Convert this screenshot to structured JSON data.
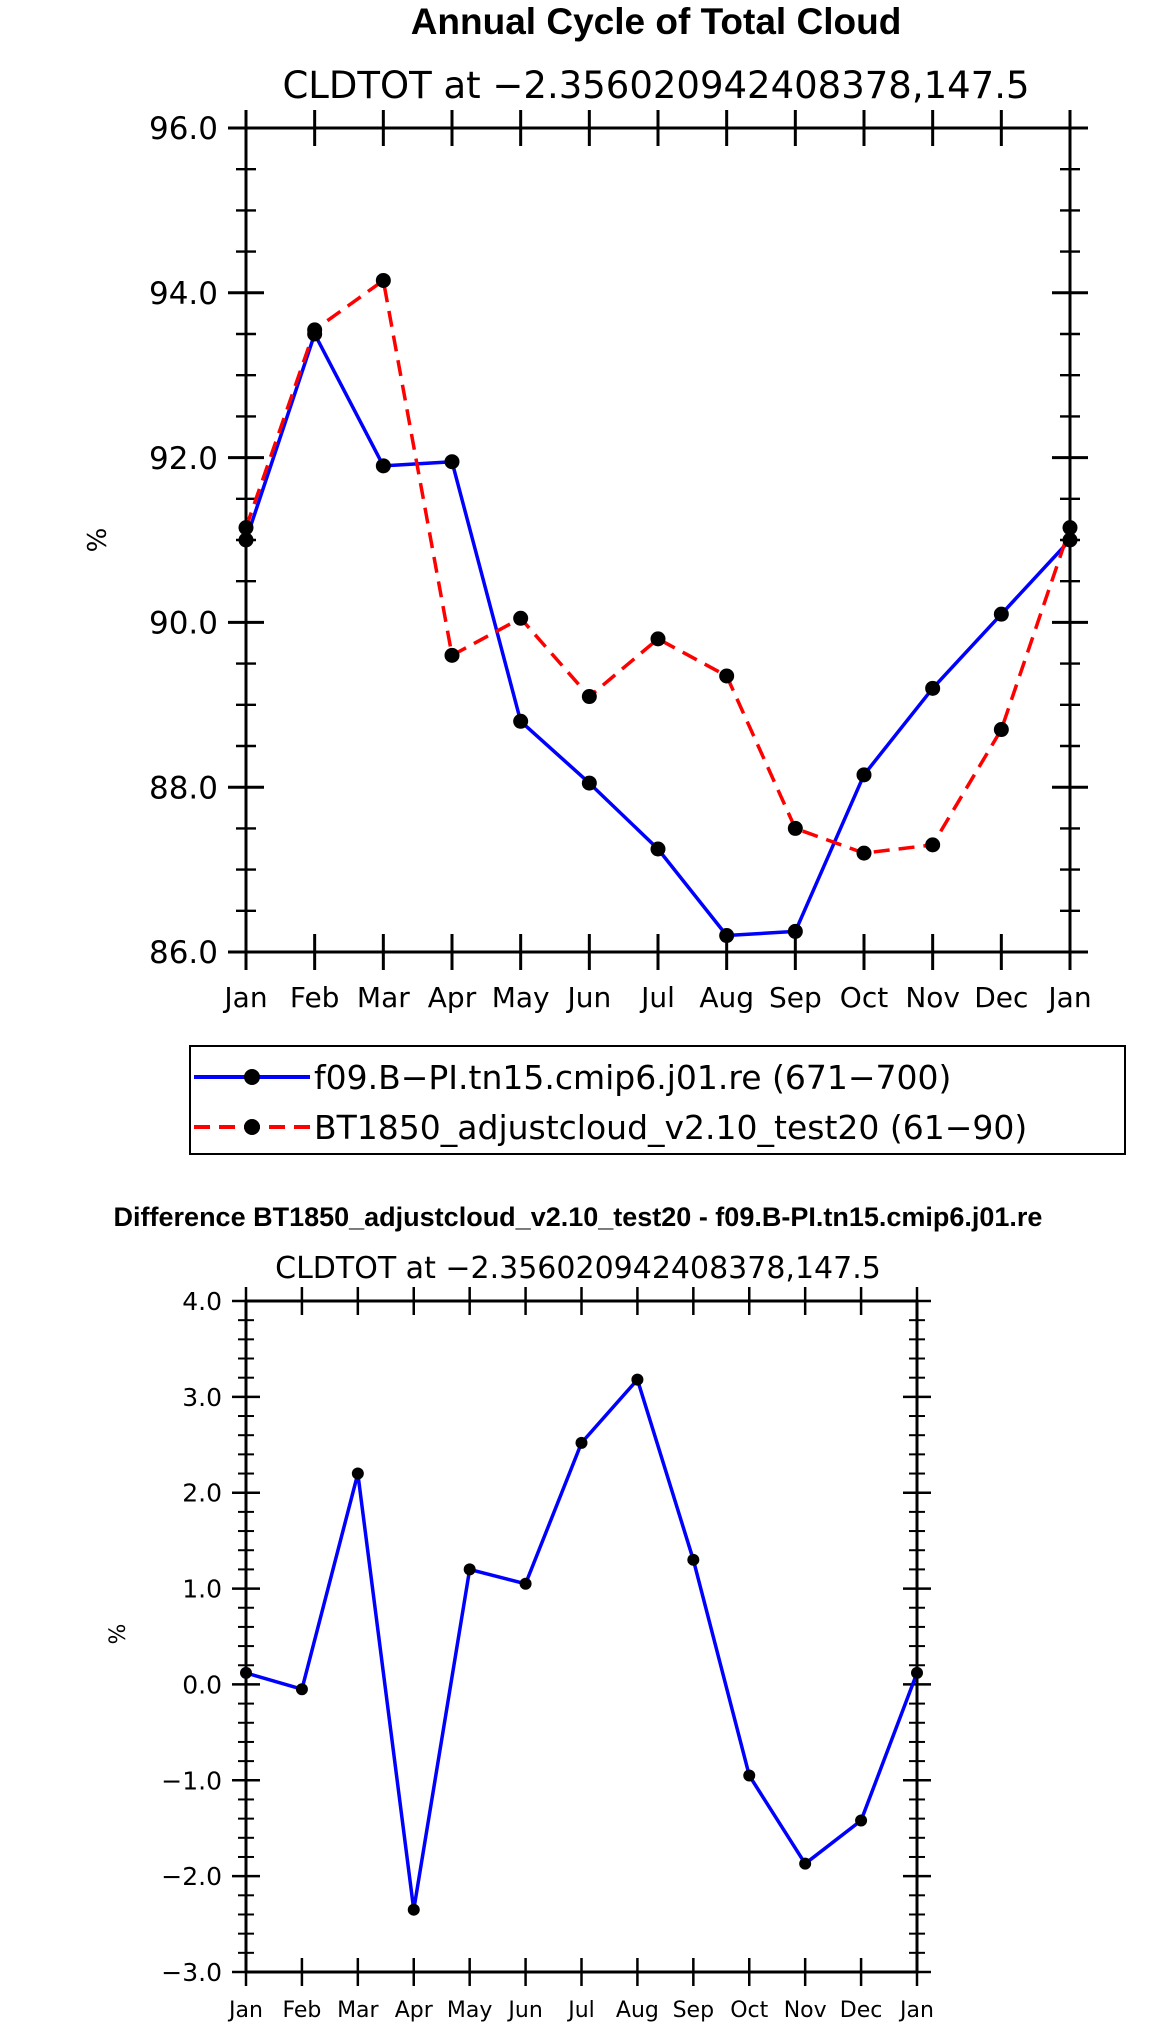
{
  "chart_data": [
    {
      "type": "line",
      "title": "Annual Cycle of Total Cloud",
      "subtitle": "CLDTOT at −2.356020942408378,147.5",
      "xlabel": "",
      "ylabel": "%",
      "categories": [
        "Jan",
        "Feb",
        "Mar",
        "Apr",
        "May",
        "Jun",
        "Jul",
        "Aug",
        "Sep",
        "Oct",
        "Nov",
        "Dec",
        "Jan"
      ],
      "ylim": [
        86.0,
        96.0
      ],
      "yticks": [
        "86.0",
        "88.0",
        "90.0",
        "92.0",
        "94.0",
        "96.0"
      ],
      "series": [
        {
          "name": "f09.B−PI.tn15.cmip6.j01.re (671−700)",
          "color": "#0000ff",
          "dash": "solid",
          "values": [
            91.0,
            93.5,
            91.9,
            91.95,
            88.8,
            88.05,
            87.25,
            86.2,
            86.25,
            88.15,
            89.2,
            90.1,
            91.0
          ]
        },
        {
          "name": "BT1850_adjustcloud_v2.10_test20 (61−90)",
          "color": "#ff0000",
          "dash": "dashed",
          "values": [
            91.15,
            93.55,
            94.15,
            89.6,
            90.05,
            89.1,
            89.8,
            89.35,
            87.5,
            87.2,
            87.3,
            88.7,
            91.15
          ]
        }
      ],
      "legend_position": "below"
    },
    {
      "type": "line",
      "title": "Difference BT1850_adjustcloud_v2.10_test20 - f09.B-PI.tn15.cmip6.j01.re",
      "subtitle": "CLDTOT at −2.356020942408378,147.5",
      "xlabel": "",
      "ylabel": "%",
      "categories": [
        "Jan",
        "Feb",
        "Mar",
        "Apr",
        "May",
        "Jun",
        "Jul",
        "Aug",
        "Sep",
        "Oct",
        "Nov",
        "Dec",
        "Jan"
      ],
      "ylim": [
        -3.0,
        4.0
      ],
      "yticks": [
        "−3.0",
        "−2.0",
        "−1.0",
        "0.0",
        "1.0",
        "2.0",
        "3.0",
        "4.0"
      ],
      "series": [
        {
          "name": "difference",
          "color": "#0000ff",
          "dash": "solid",
          "values": [
            0.12,
            -0.05,
            2.2,
            -2.35,
            1.2,
            1.05,
            2.52,
            3.18,
            1.3,
            -0.95,
            -1.87,
            -1.42,
            0.12
          ]
        }
      ]
    }
  ]
}
